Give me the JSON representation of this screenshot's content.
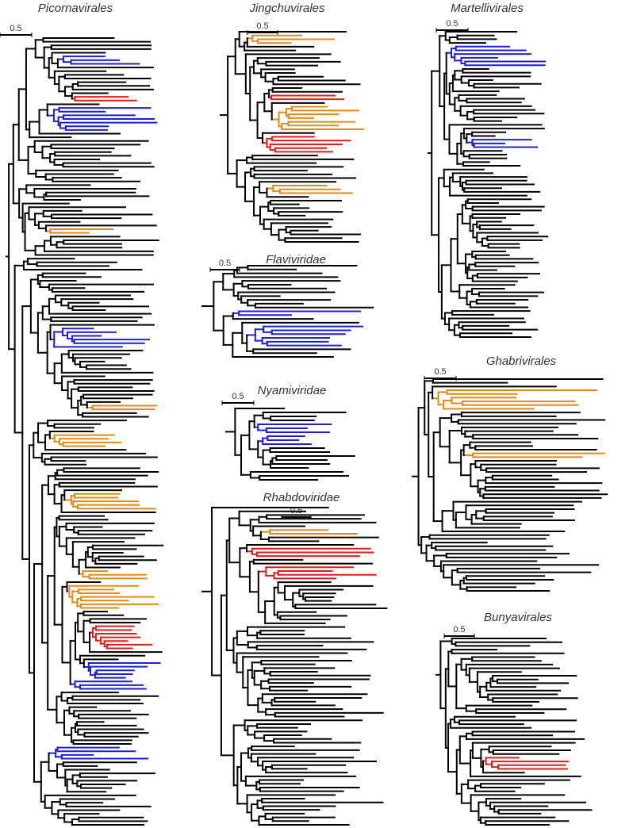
{
  "panels": [
    {
      "title": "Picornavirales",
      "scale_label": "0.5"
    },
    {
      "title": "Jingchuvirales",
      "scale_label": "0.5"
    },
    {
      "title": "Martellivirales",
      "scale_label": "0.5"
    },
    {
      "title": "Flaviviridae",
      "scale_label": "0.5"
    },
    {
      "title": "Nyamiviridae",
      "scale_label": "0.5"
    },
    {
      "title": "Rhabdoviridae",
      "scale_label": "0.5"
    },
    {
      "title": "Ghabrivirales",
      "scale_label": "0.5"
    },
    {
      "title": "Bunyavirales",
      "scale_label": "0.5"
    }
  ]
}
